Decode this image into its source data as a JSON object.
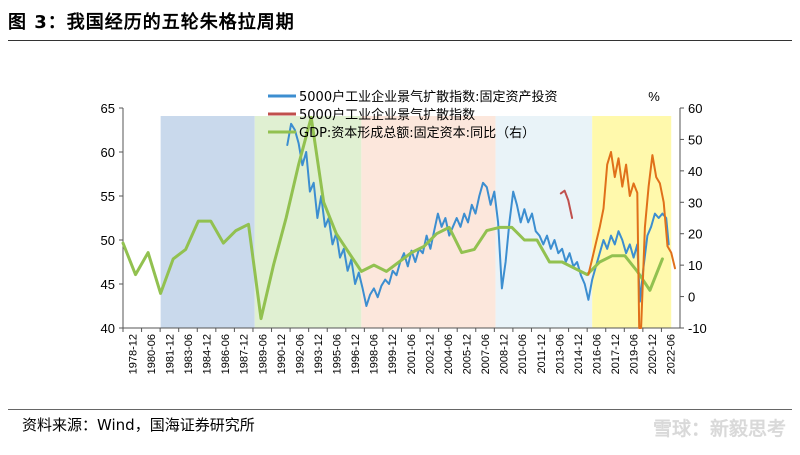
{
  "figure": {
    "title": "图 3：我国经历的五轮朱格拉周期",
    "source": "资料来源：Wind，国海证券研究所",
    "watermark": "雪球：新毅思考"
  },
  "chart_data": {
    "type": "line",
    "left_axis": {
      "ylim": [
        40,
        65
      ],
      "ticks": [
        40,
        45,
        50,
        55,
        60,
        65
      ]
    },
    "right_axis": {
      "unit": "%",
      "ylim": [
        -10,
        60
      ],
      "ticks": [
        -10,
        0,
        10,
        20,
        30,
        40,
        50,
        60
      ]
    },
    "x_tick_labels": [
      "1978-12",
      "1980-06",
      "1981-12",
      "1983-06",
      "1984-12",
      "1986-06",
      "1987-12",
      "1989-06",
      "1990-12",
      "1992-06",
      "1993-12",
      "1995-06",
      "1996-12",
      "1998-06",
      "1999-12",
      "2001-06",
      "2002-12",
      "2004-06",
      "2005-12",
      "2007-06",
      "2008-12",
      "2010-06",
      "2011-12",
      "2013-06",
      "2014-12",
      "2016-06",
      "2017-12",
      "2019-06",
      "2020-12",
      "2022-06"
    ],
    "x_range": [
      1978.9,
      2023.3
    ],
    "shaded_periods": [
      {
        "start": 1981.9,
        "end": 1989.4,
        "color": "#c9d9ec"
      },
      {
        "start": 1989.4,
        "end": 1997.9,
        "color": "#e0f0d2"
      },
      {
        "start": 1997.9,
        "end": 2008.6,
        "color": "#fce7dc"
      },
      {
        "start": 2008.6,
        "end": 2016.3,
        "color": "#e9f3f8"
      },
      {
        "start": 2016.3,
        "end": 2022.6,
        "color": "#fff9ac"
      }
    ],
    "series": [
      {
        "name": "5000户工业企业景气扩散指数:固定资产投资",
        "color": "#3c8ed0",
        "axis": "left",
        "points": [
          [
            1992.0,
            60.8
          ],
          [
            1992.3,
            63.2
          ],
          [
            1992.6,
            62.5
          ],
          [
            1992.9,
            61.0
          ],
          [
            1993.2,
            58.5
          ],
          [
            1993.5,
            60.0
          ],
          [
            1993.8,
            55.5
          ],
          [
            1994.1,
            56.5
          ],
          [
            1994.4,
            52.5
          ],
          [
            1994.7,
            55.0
          ],
          [
            1995.0,
            51.5
          ],
          [
            1995.3,
            52.5
          ],
          [
            1995.6,
            49.5
          ],
          [
            1995.9,
            50.8
          ],
          [
            1996.2,
            48.0
          ],
          [
            1996.5,
            49.0
          ],
          [
            1996.8,
            46.5
          ],
          [
            1997.1,
            47.8
          ],
          [
            1997.4,
            45.0
          ],
          [
            1997.7,
            46.3
          ],
          [
            1998.0,
            44.5
          ],
          [
            1998.3,
            42.5
          ],
          [
            1998.6,
            43.8
          ],
          [
            1998.9,
            44.5
          ],
          [
            1999.2,
            43.5
          ],
          [
            1999.5,
            44.8
          ],
          [
            1999.8,
            45.5
          ],
          [
            2000.1,
            45.0
          ],
          [
            2000.4,
            46.5
          ],
          [
            2000.7,
            46.0
          ],
          [
            2001.0,
            47.5
          ],
          [
            2001.3,
            48.5
          ],
          [
            2001.6,
            47.0
          ],
          [
            2001.9,
            48.8
          ],
          [
            2002.2,
            47.5
          ],
          [
            2002.5,
            49.0
          ],
          [
            2002.8,
            48.5
          ],
          [
            2003.1,
            50.5
          ],
          [
            2003.4,
            49.0
          ],
          [
            2003.7,
            51.0
          ],
          [
            2004.0,
            53.0
          ],
          [
            2004.3,
            51.5
          ],
          [
            2004.6,
            52.5
          ],
          [
            2004.9,
            50.5
          ],
          [
            2005.2,
            51.5
          ],
          [
            2005.5,
            52.5
          ],
          [
            2005.8,
            51.5
          ],
          [
            2006.1,
            53.0
          ],
          [
            2006.4,
            52.0
          ],
          [
            2006.7,
            54.0
          ],
          [
            2007.0,
            53.0
          ],
          [
            2007.3,
            55.0
          ],
          [
            2007.6,
            56.5
          ],
          [
            2007.9,
            56.0
          ],
          [
            2008.2,
            54.0
          ],
          [
            2008.5,
            55.5
          ],
          [
            2008.8,
            52.0
          ],
          [
            2009.1,
            44.5
          ],
          [
            2009.4,
            47.5
          ],
          [
            2009.7,
            52.0
          ],
          [
            2010.0,
            55.5
          ],
          [
            2010.3,
            54.0
          ],
          [
            2010.6,
            52.0
          ],
          [
            2010.9,
            53.5
          ],
          [
            2011.2,
            52.0
          ],
          [
            2011.5,
            53.0
          ],
          [
            2011.8,
            51.0
          ],
          [
            2012.1,
            50.5
          ],
          [
            2012.4,
            49.5
          ],
          [
            2012.7,
            50.5
          ],
          [
            2013.0,
            49.0
          ],
          [
            2013.3,
            50.0
          ],
          [
            2013.6,
            48.5
          ],
          [
            2013.9,
            49.0
          ],
          [
            2014.2,
            47.5
          ],
          [
            2014.5,
            48.5
          ],
          [
            2014.8,
            47.0
          ],
          [
            2015.1,
            47.5
          ],
          [
            2015.4,
            46.0
          ],
          [
            2015.7,
            45.0
          ],
          [
            2016.0,
            43.2
          ],
          [
            2016.3,
            45.5
          ],
          [
            2016.6,
            47.0
          ],
          [
            2016.9,
            48.5
          ],
          [
            2017.2,
            50.0
          ],
          [
            2017.5,
            49.0
          ],
          [
            2017.8,
            50.5
          ],
          [
            2018.1,
            49.5
          ],
          [
            2018.4,
            51.0
          ],
          [
            2018.7,
            50.0
          ],
          [
            2019.0,
            48.5
          ],
          [
            2019.3,
            49.5
          ],
          [
            2019.6,
            48.0
          ],
          [
            2019.9,
            49.5
          ],
          [
            2020.1,
            43.0
          ],
          [
            2020.4,
            47.0
          ],
          [
            2020.7,
            50.5
          ],
          [
            2021.0,
            51.5
          ],
          [
            2021.3,
            53.0
          ],
          [
            2021.6,
            52.5
          ],
          [
            2021.9,
            53.0
          ],
          [
            2022.2,
            52.5
          ],
          [
            2022.4,
            49.5
          ]
        ]
      },
      {
        "name": "5000户工业企业景气扩散指数",
        "color": "#c0504d",
        "axis": "left",
        "points": [
          [
            2013.8,
            55.3
          ],
          [
            2014.1,
            55.6
          ],
          [
            2014.4,
            54.5
          ],
          [
            2014.7,
            52.5
          ]
        ]
      },
      {
        "name": "GDP:资本形成总额:固定资本:同比（右）",
        "color": "#92c150",
        "axis": "right",
        "points": [
          [
            1978.9,
            17
          ],
          [
            1979.9,
            7
          ],
          [
            1980.9,
            14
          ],
          [
            1981.9,
            1
          ],
          [
            1982.9,
            12
          ],
          [
            1983.9,
            15
          ],
          [
            1984.9,
            24
          ],
          [
            1985.9,
            24
          ],
          [
            1986.9,
            17
          ],
          [
            1987.9,
            21
          ],
          [
            1988.9,
            23
          ],
          [
            1989.9,
            -7
          ],
          [
            1990.9,
            10
          ],
          [
            1991.9,
            25
          ],
          [
            1992.9,
            42
          ],
          [
            1993.9,
            57
          ],
          [
            1994.9,
            30
          ],
          [
            1995.9,
            20
          ],
          [
            1996.9,
            14
          ],
          [
            1997.9,
            8
          ],
          [
            1998.9,
            10
          ],
          [
            1999.9,
            8
          ],
          [
            2000.9,
            11
          ],
          [
            2001.9,
            14
          ],
          [
            2002.9,
            16
          ],
          [
            2003.9,
            20
          ],
          [
            2004.9,
            22
          ],
          [
            2005.9,
            14
          ],
          [
            2006.9,
            15
          ],
          [
            2007.9,
            21
          ],
          [
            2008.9,
            22
          ],
          [
            2009.9,
            22
          ],
          [
            2010.9,
            18
          ],
          [
            2011.9,
            18
          ],
          [
            2012.9,
            11
          ],
          [
            2013.9,
            11
          ],
          [
            2014.9,
            9
          ],
          [
            2015.9,
            7
          ],
          [
            2016.9,
            11
          ],
          [
            2017.9,
            13
          ],
          [
            2018.9,
            13
          ],
          [
            2019.9,
            8
          ],
          [
            2020.9,
            2
          ],
          [
            2021.9,
            12
          ]
        ]
      },
      {
        "name": "GDP:资本形成总额:固定资本:同比（右）",
        "color": "#e0701a",
        "axis": "right",
        "legend": false,
        "points": [
          [
            2016.0,
            7
          ],
          [
            2016.3,
            12
          ],
          [
            2016.6,
            17
          ],
          [
            2016.9,
            22
          ],
          [
            2017.2,
            28
          ],
          [
            2017.5,
            42
          ],
          [
            2017.8,
            46
          ],
          [
            2018.1,
            38
          ],
          [
            2018.4,
            44
          ],
          [
            2018.7,
            35
          ],
          [
            2019.0,
            42
          ],
          [
            2019.3,
            32
          ],
          [
            2019.6,
            36
          ],
          [
            2019.9,
            33
          ],
          [
            2020.05,
            -10
          ],
          [
            2020.2,
            -10
          ],
          [
            2020.5,
            22
          ],
          [
            2020.8,
            35
          ],
          [
            2021.1,
            45
          ],
          [
            2021.4,
            38
          ],
          [
            2021.7,
            36
          ],
          [
            2022.0,
            30
          ],
          [
            2022.3,
            16
          ],
          [
            2022.6,
            14
          ],
          [
            2022.9,
            9
          ]
        ]
      }
    ],
    "legend": [
      {
        "label": "5000户工业企业景气扩散指数:固定资产投资",
        "color": "#3c8ed0"
      },
      {
        "label": "5000户工业企业景气扩散指数",
        "color": "#c0504d"
      },
      {
        "label": "GDP:资本形成总额:固定资本:同比（右）",
        "color": "#92c150"
      }
    ]
  }
}
